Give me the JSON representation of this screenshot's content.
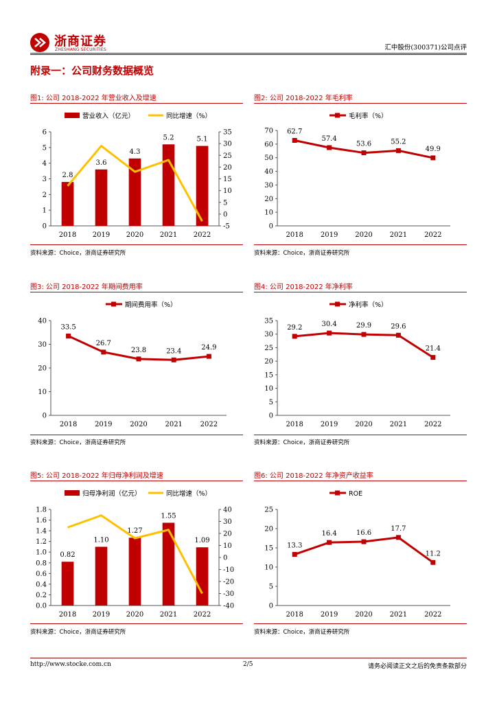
{
  "header": {
    "logo_cn": "浙商证券",
    "logo_en": "ZHESHANG SECURITIES",
    "right_text": "汇中股份(300371)公司点评"
  },
  "section_title": "附录一：公司财务数据概览",
  "colors": {
    "red": "#c00000",
    "dark_red": "#7f0000",
    "yellow": "#ffc000"
  },
  "figures": [
    {
      "title": "图1:  公司 2018-2022 年营业收入及增速",
      "source": "资料来源：Choice，浙商证券研究所"
    },
    {
      "title": "图2:  公司 2018-2022 年毛利率",
      "source": "资料来源：Choice，浙商证券研究所"
    },
    {
      "title": "图3:  公司 2018-2022 年期间费用率",
      "source": "资料来源：Choice，浙商证券研究所"
    },
    {
      "title": "图4:  公司 2018-2022 年净利率",
      "source": "资料来源：Choice，浙商证券研究所"
    },
    {
      "title": "图5:  公司 2018-2022 年归母净利润及增速",
      "source": "资料来源：Choice，浙商证券研究所"
    },
    {
      "title": "图6:  公司 2018-2022 年净资产收益率",
      "source": "资料来源：Choice，浙商证券研究所"
    }
  ],
  "chart_data": [
    {
      "type": "bar",
      "categories": [
        "2018",
        "2019",
        "2020",
        "2021",
        "2022"
      ],
      "series": [
        {
          "name": "营业收入（亿元）",
          "kind": "bar",
          "axis": "left",
          "values": [
            2.8,
            3.6,
            4.3,
            5.2,
            5.1
          ],
          "labels": [
            "2.8",
            "3.6",
            "4.3",
            "5.2",
            "5.1"
          ]
        },
        {
          "name": "同比增速（%）",
          "kind": "line",
          "axis": "right",
          "values": [
            12,
            29,
            18,
            23,
            -3
          ]
        }
      ],
      "ylim": [
        0,
        6
      ],
      "yticks": [
        "0",
        "1",
        "2",
        "3",
        "4",
        "5",
        "6"
      ],
      "y2lim": [
        -5,
        35
      ],
      "y2ticks": [
        "-5",
        "0",
        "5",
        "10",
        "15",
        "20",
        "25",
        "30",
        "35"
      ]
    },
    {
      "type": "line",
      "categories": [
        "2018",
        "2019",
        "2020",
        "2021",
        "2022"
      ],
      "series": [
        {
          "name": "毛利率（%）",
          "kind": "line-marker",
          "axis": "left",
          "values": [
            62.7,
            57.4,
            53.6,
            55.2,
            49.9
          ],
          "labels": [
            "62.7",
            "57.4",
            "53.6",
            "55.2",
            "49.9"
          ]
        }
      ],
      "ylim": [
        0,
        70
      ],
      "yticks": [
        "0",
        "10",
        "20",
        "30",
        "40",
        "50",
        "60",
        "70"
      ]
    },
    {
      "type": "line",
      "categories": [
        "2018",
        "2019",
        "2020",
        "2021",
        "2022"
      ],
      "series": [
        {
          "name": "期间费用率（%）",
          "kind": "line-marker",
          "axis": "left",
          "values": [
            33.5,
            26.7,
            23.8,
            23.4,
            24.9
          ],
          "labels": [
            "33.5",
            "26.7",
            "23.8",
            "23.4",
            "24.9"
          ]
        }
      ],
      "ylim": [
        0,
        40
      ],
      "yticks": [
        "0",
        "10",
        "20",
        "30",
        "40"
      ]
    },
    {
      "type": "line",
      "categories": [
        "2018",
        "2019",
        "2020",
        "2021",
        "2022"
      ],
      "series": [
        {
          "name": "净利率（%）",
          "kind": "line-marker",
          "axis": "left",
          "values": [
            29.2,
            30.4,
            29.9,
            29.6,
            21.4
          ],
          "labels": [
            "29.2",
            "30.4",
            "29.9",
            "29.6",
            "21.4"
          ]
        }
      ],
      "ylim": [
        0,
        35
      ],
      "yticks": [
        "0",
        "5",
        "10",
        "15",
        "20",
        "25",
        "30",
        "35"
      ]
    },
    {
      "type": "bar",
      "categories": [
        "2018",
        "2019",
        "2020",
        "2021",
        "2022"
      ],
      "series": [
        {
          "name": "归母净利润（亿元）",
          "kind": "bar",
          "axis": "left",
          "values": [
            0.82,
            1.1,
            1.27,
            1.55,
            1.09
          ],
          "labels": [
            "0.82",
            "1.10",
            "1.27",
            "1.55",
            "1.09"
          ]
        },
        {
          "name": "同比增速（%）",
          "kind": "line",
          "axis": "right",
          "values": [
            25,
            35,
            16,
            23,
            -30
          ]
        }
      ],
      "ylim": [
        0,
        1.8
      ],
      "yticks": [
        "0.0",
        "0.2",
        "0.4",
        "0.6",
        "0.8",
        "1.0",
        "1.2",
        "1.4",
        "1.6",
        "1.8"
      ],
      "y2lim": [
        -40,
        40
      ],
      "y2ticks": [
        "-40",
        "-30",
        "-20",
        "-10",
        "0",
        "10",
        "20",
        "30",
        "40"
      ]
    },
    {
      "type": "line",
      "categories": [
        "2018",
        "2019",
        "2020",
        "2021",
        "2022"
      ],
      "series": [
        {
          "name": "ROE",
          "kind": "line-marker",
          "axis": "left",
          "values": [
            13.3,
            16.4,
            16.6,
            17.7,
            11.2
          ],
          "labels": [
            "13.3",
            "16.4",
            "16.6",
            "17.7",
            "11.2"
          ]
        }
      ],
      "ylim": [
        0,
        25
      ],
      "yticks": [
        "0",
        "5",
        "10",
        "15",
        "20",
        "25"
      ]
    }
  ],
  "footer": {
    "url": "http://www.stocke.com.cn",
    "page": "2/5",
    "disclaimer": "请务必阅读正文之后的免责条款部分"
  }
}
